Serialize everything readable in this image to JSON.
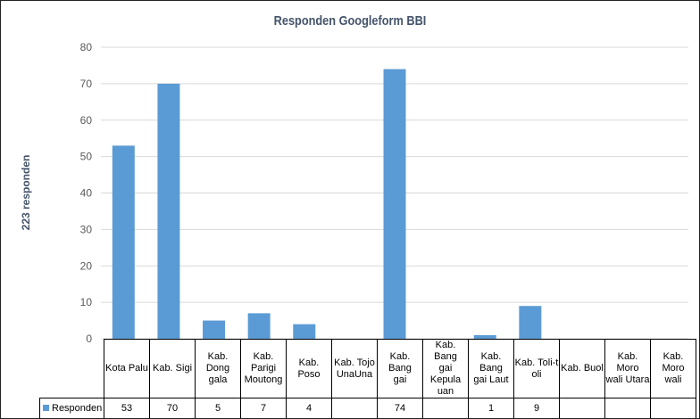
{
  "chart_data": {
    "type": "bar",
    "title": "Responden Googleform BBI",
    "xlabel": "",
    "ylabel": "223 responden",
    "ylim": [
      0,
      80
    ],
    "yticks": [
      0,
      10,
      20,
      30,
      40,
      50,
      60,
      70,
      80
    ],
    "grid": true,
    "legend": "data-table",
    "categories": [
      "Kota Palu",
      "Kab. Sigi",
      "Kab. Dong\ngala",
      "Kab. Parigi\nMoutong",
      "Kab. Poso",
      "Kab. Tojo\nUnaUna",
      "Kab. Bang\ngai",
      "Kab. Bang\ngai Kepula\nuan",
      "Kab. Bang\ngai Laut",
      "Kab. Toli-t\noli",
      "Kab. Buol",
      "Kab. Moro\nwali Utara",
      "Kab. Moro\nwali"
    ],
    "series": [
      {
        "name": "Responden",
        "color": "#5b9bd5",
        "values": [
          53,
          70,
          5,
          7,
          4,
          null,
          74,
          null,
          1,
          9,
          null,
          null,
          null
        ]
      }
    ]
  }
}
